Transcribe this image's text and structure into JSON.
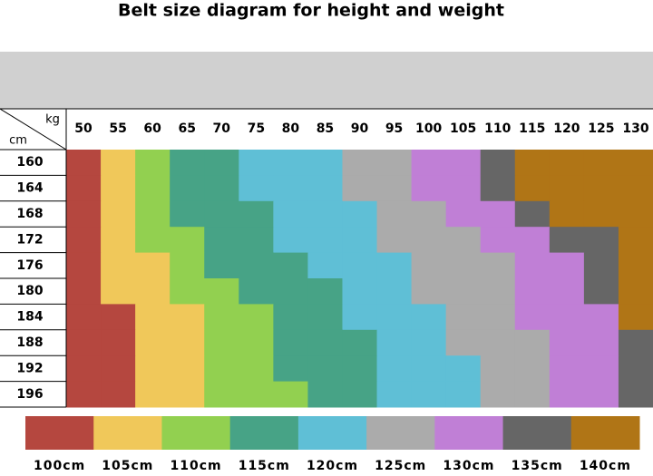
{
  "title": "Belt size diagram for height and weight",
  "kg_label": "kg",
  "cm_label": "cm",
  "weights": [
    50,
    55,
    60,
    65,
    70,
    75,
    80,
    85,
    90,
    95,
    100,
    105,
    110,
    115,
    120,
    125,
    130
  ],
  "heights": [
    160,
    164,
    168,
    172,
    176,
    180,
    184,
    188,
    192,
    196
  ],
  "legend": [
    {
      "value": 100,
      "label": "100cm",
      "color": "#b5473f"
    },
    {
      "value": 105,
      "label": "105cm",
      "color": "#f0c85a"
    },
    {
      "value": 110,
      "label": "110cm",
      "color": "#92d050"
    },
    {
      "value": 115,
      "label": "115cm",
      "color": "#47a386"
    },
    {
      "value": 120,
      "label": "120cm",
      "color": "#5fbfd6"
    },
    {
      "value": 125,
      "label": "125cm",
      "color": "#ababab"
    },
    {
      "value": 130,
      "label": "130cm",
      "color": "#c07fd6"
    },
    {
      "value": 135,
      "label": "135cm",
      "color": "#666666"
    },
    {
      "value": 140,
      "label": "140cm",
      "color": "#b07516"
    }
  ],
  "grid": [
    [
      100,
      105,
      110,
      115,
      115,
      120,
      120,
      120,
      125,
      125,
      130,
      130,
      135,
      140,
      140,
      140,
      140
    ],
    [
      100,
      105,
      110,
      115,
      115,
      120,
      120,
      120,
      125,
      125,
      130,
      130,
      135,
      140,
      140,
      140,
      140
    ],
    [
      100,
      105,
      110,
      115,
      115,
      115,
      120,
      120,
      120,
      125,
      125,
      130,
      130,
      135,
      140,
      140,
      140
    ],
    [
      100,
      105,
      110,
      110,
      115,
      115,
      120,
      120,
      120,
      125,
      125,
      125,
      130,
      130,
      135,
      135,
      140
    ],
    [
      100,
      105,
      105,
      110,
      115,
      115,
      115,
      120,
      120,
      120,
      125,
      125,
      125,
      130,
      130,
      135,
      140
    ],
    [
      100,
      105,
      105,
      110,
      110,
      115,
      115,
      115,
      120,
      120,
      125,
      125,
      125,
      130,
      130,
      135,
      140
    ],
    [
      100,
      100,
      105,
      105,
      110,
      110,
      115,
      115,
      120,
      120,
      120,
      125,
      125,
      130,
      130,
      130,
      140
    ],
    [
      100,
      100,
      105,
      105,
      110,
      110,
      115,
      115,
      115,
      120,
      120,
      125,
      125,
      125,
      130,
      130,
      135
    ],
    [
      100,
      100,
      105,
      105,
      110,
      110,
      115,
      115,
      115,
      120,
      120,
      120,
      125,
      125,
      130,
      130,
      135
    ],
    [
      100,
      100,
      105,
      105,
      110,
      110,
      110,
      115,
      115,
      120,
      120,
      120,
      125,
      125,
      130,
      130,
      135
    ]
  ]
}
